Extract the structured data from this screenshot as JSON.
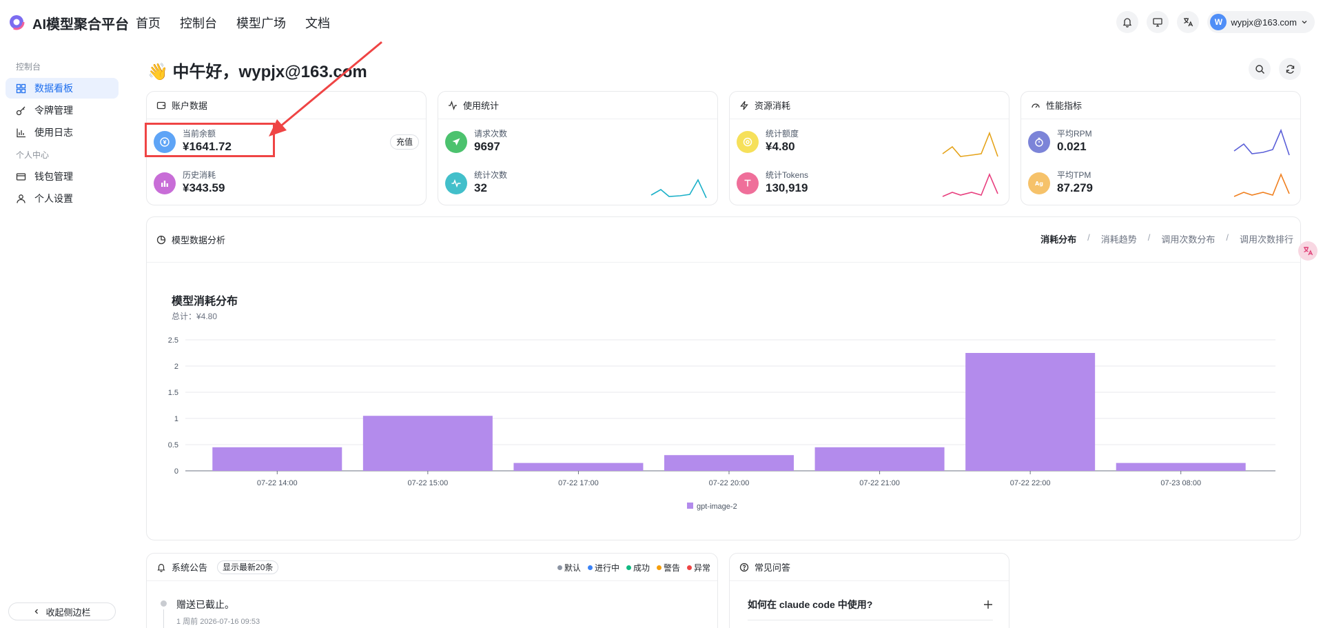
{
  "app": {
    "title": "AI模型聚合平台"
  },
  "nav": [
    "首页",
    "控制台",
    "模型广场",
    "文档"
  ],
  "user": {
    "avatar_letter": "W",
    "email": "wypjx@163.com"
  },
  "sidebar": {
    "section1": "控制台",
    "items1": [
      {
        "label": "数据看板",
        "icon": "dashboard-icon",
        "active": true
      },
      {
        "label": "令牌管理",
        "icon": "key-icon"
      },
      {
        "label": "使用日志",
        "icon": "chart-log-icon"
      }
    ],
    "section2": "个人中心",
    "items2": [
      {
        "label": "钱包管理",
        "icon": "wallet-icon"
      },
      {
        "label": "个人设置",
        "icon": "user-icon"
      }
    ],
    "collapse_label": "收起侧边栏"
  },
  "greeting": "👋 中午好，wypjx@163.com",
  "cards": {
    "account": {
      "title": "账户数据",
      "balance_label": "当前余额",
      "balance_value": "¥1641.72",
      "recharge_label": "充值",
      "history_label": "历史消耗",
      "history_value": "¥343.59"
    },
    "usage": {
      "title": "使用统计",
      "requests_label": "请求次数",
      "requests_value": "9697",
      "stat_label": "统计次数",
      "stat_value": "32"
    },
    "resource": {
      "title": "资源消耗",
      "quota_label": "统计额度",
      "quota_value": "¥4.80",
      "tokens_label": "统计Tokens",
      "tokens_value": "130,919"
    },
    "performance": {
      "title": "性能指标",
      "rpm_label": "平均RPM",
      "rpm_value": "0.021",
      "tpm_label": "平均TPM",
      "tpm_value": "87.279"
    }
  },
  "analysis": {
    "title": "模型数据分析",
    "tabs": [
      "消耗分布",
      "消耗趋势",
      "调用次数分布",
      "调用次数排行"
    ],
    "active_tab": 0,
    "sep": "/",
    "chart_title": "模型消耗分布",
    "chart_sub": "总计：¥4.80"
  },
  "chart_data": {
    "type": "bar",
    "categories": [
      "07-22 14:00",
      "07-22 15:00",
      "07-22 17:00",
      "07-22 20:00",
      "07-22 21:00",
      "07-22 22:00",
      "07-23 08:00"
    ],
    "series": [
      {
        "name": "gpt-image-2",
        "values": [
          0.45,
          1.05,
          0.15,
          0.3,
          0.45,
          2.25,
          0.15
        ]
      }
    ],
    "yticks": [
      "0",
      "0.5",
      "1",
      "1.5",
      "2",
      "2.5"
    ],
    "ylim": [
      0,
      2.5
    ],
    "color": "#b38bec",
    "legend": "bottom"
  },
  "announcements": {
    "title": "系统公告",
    "badge": "显示最新20条",
    "legend": [
      {
        "label": "默认",
        "color": "#8c94a3"
      },
      {
        "label": "进行中",
        "color": "#3b82f6"
      },
      {
        "label": "成功",
        "color": "#10b981"
      },
      {
        "label": "警告",
        "color": "#f59e0b"
      },
      {
        "label": "异常",
        "color": "#ef4444"
      }
    ],
    "items": [
      {
        "text": "赠送已截止。",
        "time": "1 周前 2026-07-16 09:53"
      }
    ]
  },
  "faq": {
    "title": "常见问答",
    "items": [
      "如何在 claude code 中使用?"
    ]
  }
}
